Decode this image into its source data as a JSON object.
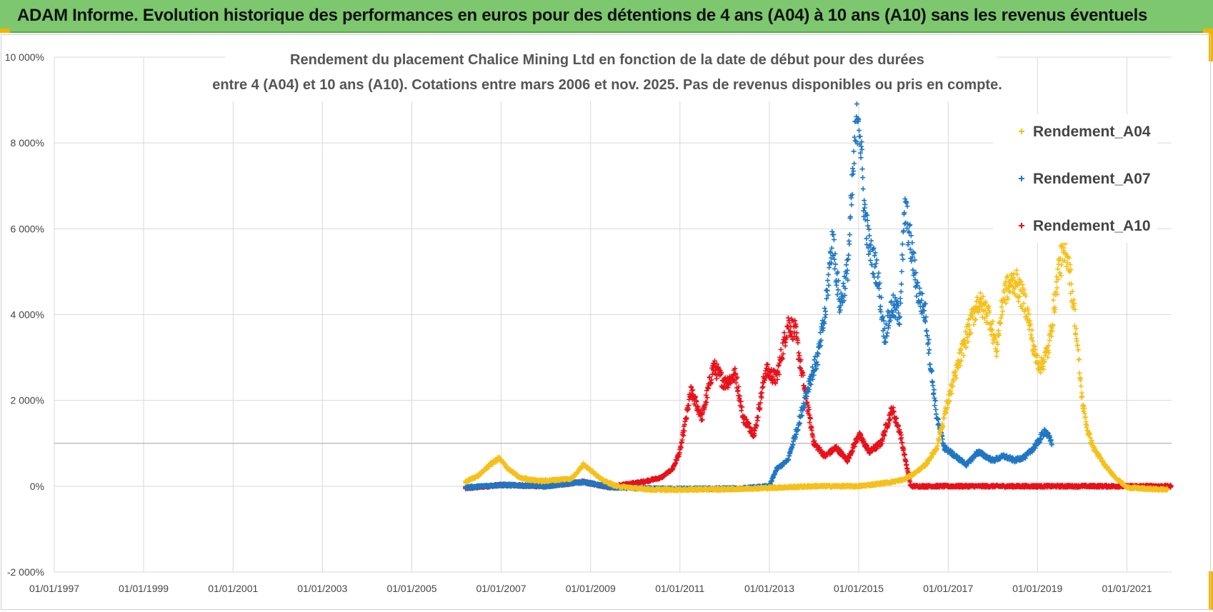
{
  "banner": {
    "text": "ADAM Informe. Evolution historique des performances en euros pour des détentions de 4 ans (A04) à 10 ans (A10) sans les revenus éventuels",
    "background": "#7dc86e"
  },
  "chart_data": {
    "type": "scatter",
    "title_lines": [
      "Rendement du placement Chalice Mining Ltd en fonction de la date de début pour des durées",
      "entre 4 (A04) et 10 ans (A10).  Cotations entre mars 2006 et nov. 2025. Pas de revenus disponibles ou pris en compte."
    ],
    "xlabel": "",
    "ylabel": "",
    "x_range": [
      "1997-01-01",
      "2022-01-01"
    ],
    "x_ticks": [
      "01/01/1997",
      "01/01/1999",
      "01/01/2001",
      "01/01/2003",
      "01/01/2005",
      "01/01/2007",
      "01/01/2009",
      "01/01/2011",
      "01/01/2013",
      "01/01/2015",
      "01/01/2017",
      "01/01/2019",
      "01/01/2021"
    ],
    "y_range": [
      -2000,
      10000
    ],
    "y_ticks": [
      -2000,
      0,
      2000,
      4000,
      6000,
      8000,
      10000
    ],
    "y_tick_labels": [
      "-2 000%",
      "0%",
      "2 000%",
      "4 000%",
      "6 000%",
      "8 000%",
      "10 000%"
    ],
    "y_unit": "%",
    "reference_line": 1000,
    "grid": true,
    "marker": "plus",
    "legend_position": "right",
    "series": [
      {
        "name": "Rendement_A04",
        "color": "#f5c01a",
        "points": [
          [
            "2006-03-15",
            100
          ],
          [
            "2006-07-01",
            250
          ],
          [
            "2006-10-01",
            500
          ],
          [
            "2006-12-15",
            650
          ],
          [
            "2007-03-01",
            400
          ],
          [
            "2007-06-01",
            200
          ],
          [
            "2007-09-01",
            150
          ],
          [
            "2007-12-01",
            120
          ],
          [
            "2008-04-01",
            150
          ],
          [
            "2008-08-01",
            180
          ],
          [
            "2008-11-01",
            500
          ],
          [
            "2009-01-15",
            350
          ],
          [
            "2009-04-01",
            150
          ],
          [
            "2009-08-01",
            0
          ],
          [
            "2010-01-01",
            -50
          ],
          [
            "2010-06-01",
            -80
          ],
          [
            "2011-01-01",
            -80
          ],
          [
            "2012-01-01",
            -70
          ],
          [
            "2013-01-01",
            -40
          ],
          [
            "2014-01-01",
            0
          ],
          [
            "2015-01-01",
            0
          ],
          [
            "2015-06-01",
            50
          ],
          [
            "2015-10-01",
            100
          ],
          [
            "2016-01-01",
            150
          ],
          [
            "2016-04-01",
            300
          ],
          [
            "2016-07-01",
            500
          ],
          [
            "2016-10-01",
            900
          ],
          [
            "2017-01-01",
            2000
          ],
          [
            "2017-03-01",
            2600
          ],
          [
            "2017-06-01",
            3500
          ],
          [
            "2017-09-01",
            4300
          ],
          [
            "2017-12-01",
            4000
          ],
          [
            "2018-02-01",
            3200
          ],
          [
            "2018-04-01",
            4500
          ],
          [
            "2018-07-01",
            4800
          ],
          [
            "2018-10-01",
            4200
          ],
          [
            "2018-12-15",
            3000
          ],
          [
            "2019-02-01",
            2800
          ],
          [
            "2019-04-01",
            3200
          ],
          [
            "2019-07-01",
            5200
          ],
          [
            "2019-09-01",
            5500
          ],
          [
            "2019-11-01",
            4000
          ],
          [
            "2020-01-01",
            2000
          ],
          [
            "2020-02-15",
            1300
          ],
          [
            "2020-04-01",
            900
          ],
          [
            "2020-07-01",
            500
          ],
          [
            "2020-10-01",
            200
          ],
          [
            "2021-01-01",
            -30
          ],
          [
            "2021-06-01",
            -60
          ],
          [
            "2021-12-01",
            -80
          ]
        ]
      },
      {
        "name": "Rendement_A07",
        "color": "#1f77c4",
        "points": [
          [
            "2006-03-15",
            -30
          ],
          [
            "2007-01-01",
            30
          ],
          [
            "2008-01-01",
            0
          ],
          [
            "2008-11-01",
            100
          ],
          [
            "2009-06-01",
            -20
          ],
          [
            "2010-06-01",
            -60
          ],
          [
            "2011-06-01",
            -60
          ],
          [
            "2012-06-01",
            -50
          ],
          [
            "2013-01-01",
            0
          ],
          [
            "2013-03-01",
            400
          ],
          [
            "2013-06-01",
            600
          ],
          [
            "2013-09-01",
            1500
          ],
          [
            "2013-12-01",
            2500
          ],
          [
            "2014-02-01",
            3000
          ],
          [
            "2014-04-01",
            4000
          ],
          [
            "2014-06-01",
            5800
          ],
          [
            "2014-08-01",
            4200
          ],
          [
            "2014-10-01",
            5000
          ],
          [
            "2014-12-01",
            8000
          ],
          [
            "2015-01-01",
            8800
          ],
          [
            "2015-02-15",
            6500
          ],
          [
            "2015-04-01",
            5500
          ],
          [
            "2015-06-01",
            5000
          ],
          [
            "2015-08-01",
            3500
          ],
          [
            "2015-10-01",
            4200
          ],
          [
            "2015-12-01",
            4000
          ],
          [
            "2016-01-15",
            6500
          ],
          [
            "2016-03-01",
            5600
          ],
          [
            "2016-05-01",
            4500
          ],
          [
            "2016-07-01",
            4000
          ],
          [
            "2016-08-15",
            2700
          ],
          [
            "2016-10-01",
            1600
          ],
          [
            "2016-12-01",
            900
          ],
          [
            "2017-03-01",
            700
          ],
          [
            "2017-06-01",
            500
          ],
          [
            "2017-09-01",
            800
          ],
          [
            "2018-01-01",
            600
          ],
          [
            "2018-04-01",
            700
          ],
          [
            "2018-07-01",
            600
          ],
          [
            "2018-10-01",
            700
          ],
          [
            "2019-01-01",
            1000
          ],
          [
            "2019-03-01",
            1300
          ],
          [
            "2019-05-01",
            1000
          ]
        ]
      },
      {
        "name": "Rendement_A10",
        "color": "#e8101a",
        "points": [
          [
            "2006-03-15",
            -50
          ],
          [
            "2007-01-01",
            30
          ],
          [
            "2008-01-01",
            0
          ],
          [
            "2008-11-01",
            100
          ],
          [
            "2009-06-01",
            -20
          ],
          [
            "2010-03-01",
            100
          ],
          [
            "2010-08-01",
            200
          ],
          [
            "2010-11-01",
            400
          ],
          [
            "2011-01-01",
            800
          ],
          [
            "2011-04-01",
            2200
          ],
          [
            "2011-07-01",
            1600
          ],
          [
            "2011-10-01",
            2800
          ],
          [
            "2012-01-01",
            2400
          ],
          [
            "2012-04-01",
            2600
          ],
          [
            "2012-06-01",
            1600
          ],
          [
            "2012-09-01",
            1200
          ],
          [
            "2012-12-01",
            2700
          ],
          [
            "2013-03-01",
            2500
          ],
          [
            "2013-06-01",
            3800
          ],
          [
            "2013-08-01",
            3600
          ],
          [
            "2013-10-01",
            2500
          ],
          [
            "2014-01-01",
            1000
          ],
          [
            "2014-04-01",
            700
          ],
          [
            "2014-07-01",
            900
          ],
          [
            "2014-10-01",
            600
          ],
          [
            "2015-01-01",
            1200
          ],
          [
            "2015-04-01",
            800
          ],
          [
            "2015-07-01",
            1000
          ],
          [
            "2015-10-01",
            1800
          ],
          [
            "2015-12-01",
            1300
          ],
          [
            "2016-03-01",
            0
          ],
          [
            "2017-01-01",
            0
          ],
          [
            "2018-01-01",
            0
          ],
          [
            "2019-01-01",
            0
          ],
          [
            "2020-01-01",
            0
          ],
          [
            "2021-01-01",
            0
          ],
          [
            "2021-12-31",
            0
          ]
        ]
      }
    ]
  }
}
